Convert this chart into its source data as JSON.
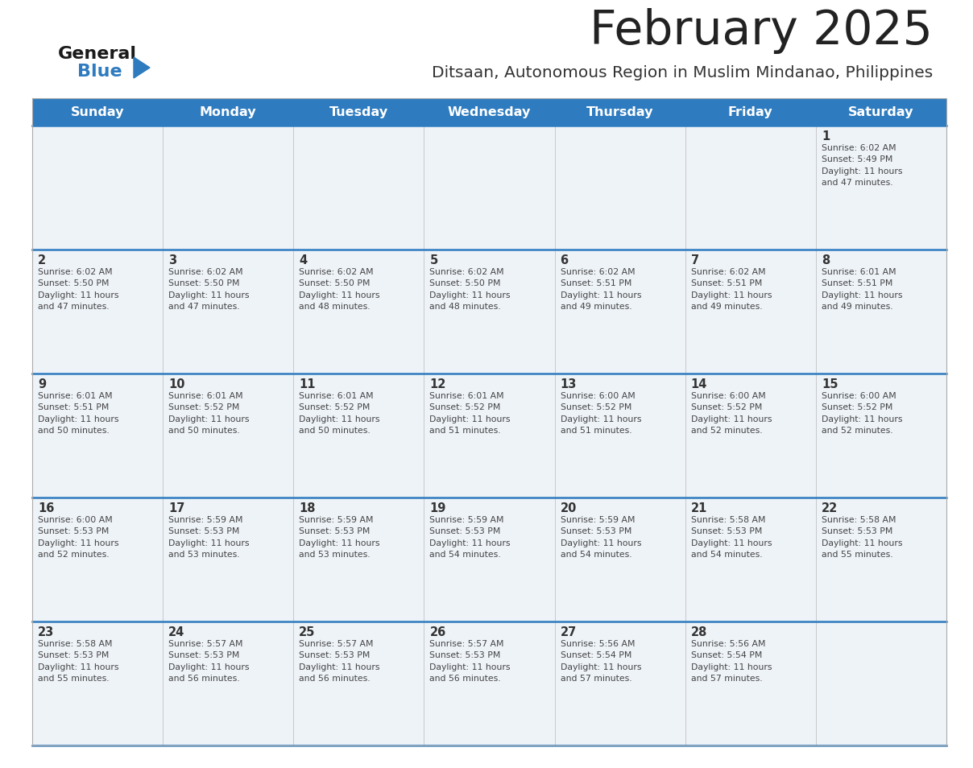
{
  "title": "February 2025",
  "subtitle": "Ditsaan, Autonomous Region in Muslim Mindanao, Philippines",
  "header_bg": "#2E7BBF",
  "header_text": "#FFFFFF",
  "days_of_week": [
    "Sunday",
    "Monday",
    "Tuesday",
    "Wednesday",
    "Thursday",
    "Friday",
    "Saturday"
  ],
  "row_line_color": "#2E7BBF",
  "title_color": "#222222",
  "subtitle_color": "#333333",
  "day_num_color": "#333333",
  "info_color": "#444444",
  "cell_bg": "#EEF3F8",
  "calendar_data": [
    [
      null,
      null,
      null,
      null,
      null,
      null,
      {
        "day": 1,
        "sunrise": "6:02 AM",
        "sunset": "5:49 PM",
        "daylight": "11 hours and 47 minutes"
      }
    ],
    [
      {
        "day": 2,
        "sunrise": "6:02 AM",
        "sunset": "5:50 PM",
        "daylight": "11 hours and 47 minutes"
      },
      {
        "day": 3,
        "sunrise": "6:02 AM",
        "sunset": "5:50 PM",
        "daylight": "11 hours and 47 minutes"
      },
      {
        "day": 4,
        "sunrise": "6:02 AM",
        "sunset": "5:50 PM",
        "daylight": "11 hours and 48 minutes"
      },
      {
        "day": 5,
        "sunrise": "6:02 AM",
        "sunset": "5:50 PM",
        "daylight": "11 hours and 48 minutes"
      },
      {
        "day": 6,
        "sunrise": "6:02 AM",
        "sunset": "5:51 PM",
        "daylight": "11 hours and 49 minutes"
      },
      {
        "day": 7,
        "sunrise": "6:02 AM",
        "sunset": "5:51 PM",
        "daylight": "11 hours and 49 minutes"
      },
      {
        "day": 8,
        "sunrise": "6:01 AM",
        "sunset": "5:51 PM",
        "daylight": "11 hours and 49 minutes"
      }
    ],
    [
      {
        "day": 9,
        "sunrise": "6:01 AM",
        "sunset": "5:51 PM",
        "daylight": "11 hours and 50 minutes"
      },
      {
        "day": 10,
        "sunrise": "6:01 AM",
        "sunset": "5:52 PM",
        "daylight": "11 hours and 50 minutes"
      },
      {
        "day": 11,
        "sunrise": "6:01 AM",
        "sunset": "5:52 PM",
        "daylight": "11 hours and 50 minutes"
      },
      {
        "day": 12,
        "sunrise": "6:01 AM",
        "sunset": "5:52 PM",
        "daylight": "11 hours and 51 minutes"
      },
      {
        "day": 13,
        "sunrise": "6:00 AM",
        "sunset": "5:52 PM",
        "daylight": "11 hours and 51 minutes"
      },
      {
        "day": 14,
        "sunrise": "6:00 AM",
        "sunset": "5:52 PM",
        "daylight": "11 hours and 52 minutes"
      },
      {
        "day": 15,
        "sunrise": "6:00 AM",
        "sunset": "5:52 PM",
        "daylight": "11 hours and 52 minutes"
      }
    ],
    [
      {
        "day": 16,
        "sunrise": "6:00 AM",
        "sunset": "5:53 PM",
        "daylight": "11 hours and 52 minutes"
      },
      {
        "day": 17,
        "sunrise": "5:59 AM",
        "sunset": "5:53 PM",
        "daylight": "11 hours and 53 minutes"
      },
      {
        "day": 18,
        "sunrise": "5:59 AM",
        "sunset": "5:53 PM",
        "daylight": "11 hours and 53 minutes"
      },
      {
        "day": 19,
        "sunrise": "5:59 AM",
        "sunset": "5:53 PM",
        "daylight": "11 hours and 54 minutes"
      },
      {
        "day": 20,
        "sunrise": "5:59 AM",
        "sunset": "5:53 PM",
        "daylight": "11 hours and 54 minutes"
      },
      {
        "day": 21,
        "sunrise": "5:58 AM",
        "sunset": "5:53 PM",
        "daylight": "11 hours and 54 minutes"
      },
      {
        "day": 22,
        "sunrise": "5:58 AM",
        "sunset": "5:53 PM",
        "daylight": "11 hours and 55 minutes"
      }
    ],
    [
      {
        "day": 23,
        "sunrise": "5:58 AM",
        "sunset": "5:53 PM",
        "daylight": "11 hours and 55 minutes"
      },
      {
        "day": 24,
        "sunrise": "5:57 AM",
        "sunset": "5:53 PM",
        "daylight": "11 hours and 56 minutes"
      },
      {
        "day": 25,
        "sunrise": "5:57 AM",
        "sunset": "5:53 PM",
        "daylight": "11 hours and 56 minutes"
      },
      {
        "day": 26,
        "sunrise": "5:57 AM",
        "sunset": "5:53 PM",
        "daylight": "11 hours and 56 minutes"
      },
      {
        "day": 27,
        "sunrise": "5:56 AM",
        "sunset": "5:54 PM",
        "daylight": "11 hours and 57 minutes"
      },
      {
        "day": 28,
        "sunrise": "5:56 AM",
        "sunset": "5:54 PM",
        "daylight": "11 hours and 57 minutes"
      },
      null
    ]
  ]
}
